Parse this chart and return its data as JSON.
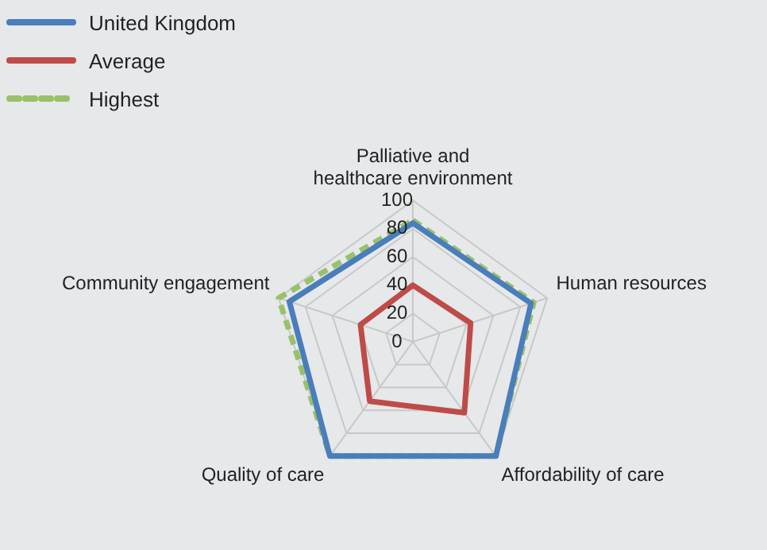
{
  "chart_data": {
    "type": "radar",
    "categories": [
      "Palliative and healthcare environment",
      "Human resources",
      "Affordability of care",
      "Quality of care",
      "Community engagement"
    ],
    "series": [
      {
        "name": "United Kingdom",
        "color": "#4a7ebb",
        "values": [
          84,
          88,
          100,
          100,
          92
        ]
      },
      {
        "name": "Average",
        "color": "#be4b48",
        "values": [
          40,
          43,
          62,
          52,
          39
        ]
      },
      {
        "name": "Highest",
        "color": "#98c16a",
        "values": [
          86,
          90,
          100,
          100,
          100
        ],
        "line_style": "dashed"
      }
    ],
    "ylim": [
      0,
      100
    ],
    "yticks": [
      0,
      20,
      40,
      60,
      80,
      100
    ],
    "grid": true,
    "legend": "top left",
    "marker": "none"
  }
}
